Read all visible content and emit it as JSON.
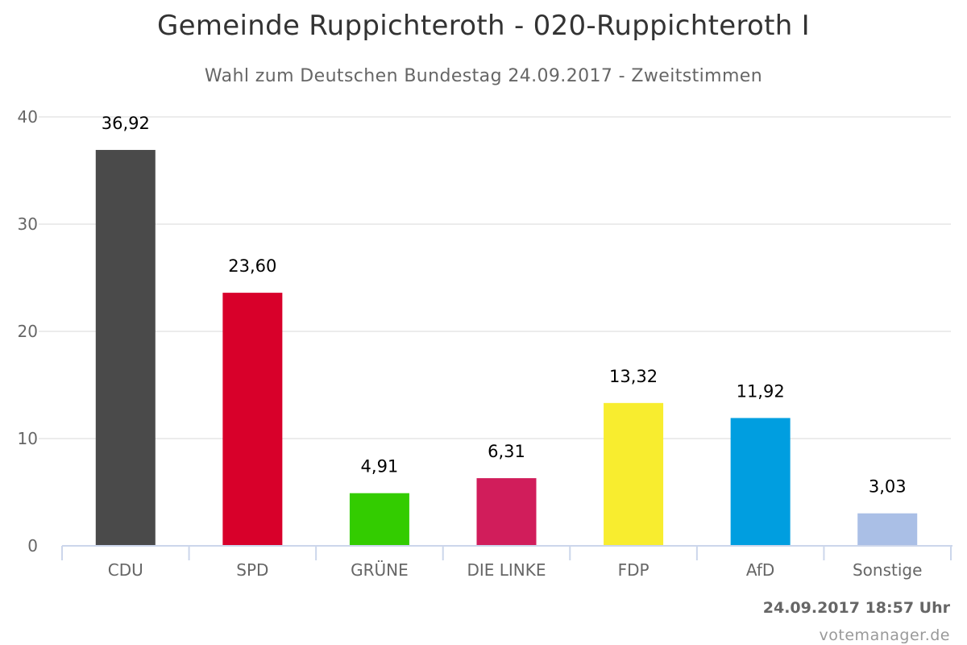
{
  "chart_data": {
    "type": "bar",
    "title": "Gemeinde Ruppichteroth - 020-Ruppichteroth I",
    "subtitle": "Wahl zum Deutschen Bundestag 24.09.2017 - Zweitstimmen",
    "xlabel": "",
    "ylabel": "",
    "categories": [
      "CDU",
      "SPD",
      "GRÜNE",
      "DIE LINKE",
      "FDP",
      "AfD",
      "Sonstige"
    ],
    "values": [
      36.92,
      23.6,
      4.91,
      6.31,
      13.32,
      11.92,
      3.03
    ],
    "data_labels": [
      "36,92",
      "23,60",
      "4,91",
      "6,31",
      "13,32",
      "11,92",
      "3,03"
    ],
    "colors": [
      "#4a4a4a",
      "#d8002a",
      "#33cc00",
      "#d11d5b",
      "#f8ed2f",
      "#009ee0",
      "#aabfe6"
    ],
    "ylim": [
      0,
      40
    ],
    "yticks": [
      0,
      10,
      20,
      30,
      40
    ],
    "grid": true,
    "legend": "none"
  },
  "footer": {
    "timestamp": "24.09.2017 18:57 Uhr",
    "credits": "votemanager.de"
  }
}
